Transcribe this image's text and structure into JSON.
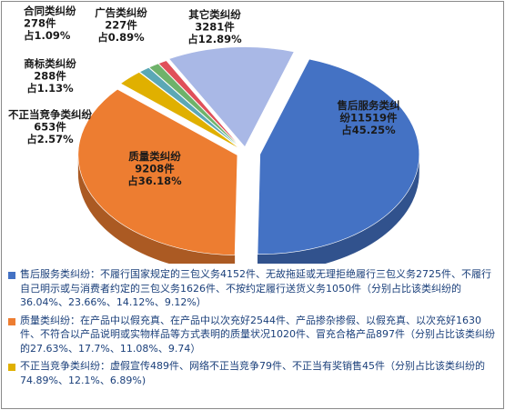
{
  "chart_data": {
    "type": "pie",
    "title": "",
    "slices": [
      {
        "name": "售后服务类纠纷",
        "count": "11519件",
        "percent": 45.25,
        "percent_label": "占45.25%",
        "color": "#4472C4"
      },
      {
        "name": "质量类纠纷",
        "count": "9208件",
        "percent": 36.18,
        "percent_label": "占36.18%",
        "color": "#ED7D31"
      },
      {
        "name": "不正当竞争类纠纷",
        "count": "653件",
        "percent": 2.57,
        "percent_label": "占2.57%",
        "color": "#E0B000"
      },
      {
        "name": "商标类纠纷",
        "count": "288件",
        "percent": 1.13,
        "percent_label": "占1.13%",
        "color": "#5BA8B5"
      },
      {
        "name": "合同类纠纷",
        "count": "278件",
        "percent": 1.09,
        "percent_label": "占1.09%",
        "color": "#6FB26A"
      },
      {
        "name": "广告类纠纷",
        "count": "227件",
        "percent": 0.89,
        "percent_label": "占0.89%",
        "color": "#E0505A"
      },
      {
        "name": "其它类纠纷",
        "count": "3281件",
        "percent": 12.89,
        "percent_label": "占12.89%",
        "color": "#A9B8E6"
      }
    ]
  },
  "notes": [
    {
      "color": "#4472C4",
      "text": "售后服务类纠纷：不履行国家规定的三包义务4152件、无故拖延或无理拒绝履行三包义务2725件、不履行自己明示或与消费者约定的三包义务1626件、不按约定履行送货义务1050件（分别占比该类纠纷的36.04%、23.66%、14.12%、9.12%）"
    },
    {
      "color": "#ED7D31",
      "text": "质量类纠纷：在产品中以假充真、在产品中以次充好2544件、产品掺杂掺假、以假充真、以次充好1630件、不符合以产品说明或实物样品等方式表明的质量状况1020件、冒充合格产品897件（分别占比该类纠纷的27.63%、17.7%、11.08%、9.74）"
    },
    {
      "color": "#E0B000",
      "text": "不正当竞争类纠纷：虚假宣传489件、网络不正当竞争79件、不正当有奖销售45件（分别占比该类纠纷的74.89%、12.1%、6.89%)"
    }
  ]
}
